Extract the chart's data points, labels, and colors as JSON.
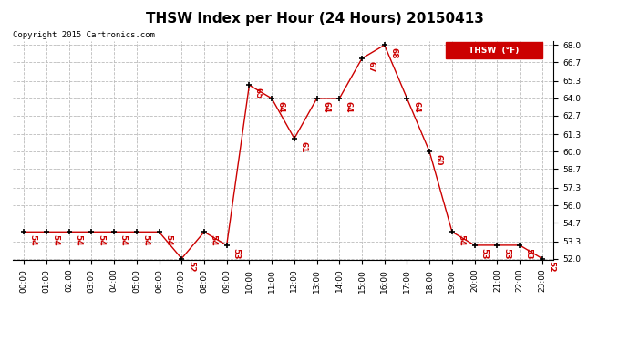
{
  "title": "THSW Index per Hour (24 Hours) 20150413",
  "copyright": "Copyright 2015 Cartronics.com",
  "legend_label": "THSW  (°F)",
  "hours": [
    0,
    1,
    2,
    3,
    4,
    5,
    6,
    7,
    8,
    9,
    10,
    11,
    12,
    13,
    14,
    15,
    16,
    17,
    18,
    19,
    20,
    21,
    22,
    23
  ],
  "values": [
    54,
    54,
    54,
    54,
    54,
    54,
    54,
    52,
    54,
    53,
    65,
    64,
    61,
    64,
    64,
    67,
    68,
    64,
    60,
    54,
    53,
    53,
    53,
    52
  ],
  "ylim_min": 52.0,
  "ylim_max": 68.0,
  "yticks": [
    52.0,
    53.3,
    54.7,
    56.0,
    57.3,
    58.7,
    60.0,
    61.3,
    62.7,
    64.0,
    65.3,
    66.7,
    68.0
  ],
  "line_color": "#cc0000",
  "marker_color": "#000000",
  "label_color": "#cc0000",
  "background_color": "#ffffff",
  "grid_color": "#bbbbbb",
  "title_fontsize": 11,
  "label_fontsize": 6.5,
  "tick_fontsize": 6.5,
  "copyright_fontsize": 6.5
}
